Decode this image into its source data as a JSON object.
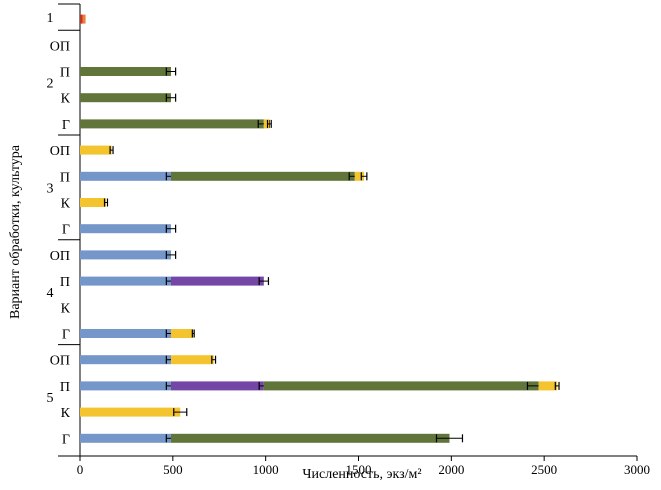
{
  "chart_data": {
    "type": "bar",
    "orientation": "horizontal-stacked",
    "title": "",
    "xlabel": "Численность, экз/м²",
    "ylabel": "Вариант обработки, культура",
    "xlim": [
      0,
      3000
    ],
    "xticks": [
      0,
      500,
      1000,
      1500,
      2000,
      2500,
      3000
    ],
    "grid": false,
    "legend": "none",
    "colors": {
      "blue": "#7496c9",
      "yellow": "#f4c42e",
      "green": "#61743a",
      "purple": "#7447a6",
      "red": "#c8321e",
      "orange": "#e8803a",
      "error_bar": "#000000"
    },
    "groups": [
      {
        "label": "1",
        "rows": [
          {
            "label": "",
            "segments": [
              {
                "color": "red",
                "value": 15,
                "err": 0
              },
              {
                "color": "orange",
                "value": 15,
                "err": 0
              }
            ]
          }
        ]
      },
      {
        "label": "2",
        "rows": [
          {
            "label": "ОП",
            "segments": []
          },
          {
            "label": "П",
            "segments": [
              {
                "color": "green",
                "value": 490,
                "err": 25
              }
            ]
          },
          {
            "label": "К",
            "segments": [
              {
                "color": "green",
                "value": 490,
                "err": 25
              }
            ]
          },
          {
            "label": "Г",
            "segments": [
              {
                "color": "green",
                "value": 990,
                "err": 30
              },
              {
                "color": "yellow",
                "value": 30,
                "err": 10
              }
            ]
          }
        ]
      },
      {
        "label": "3",
        "rows": [
          {
            "label": "ОП",
            "segments": [
              {
                "color": "yellow",
                "value": 170,
                "err": 8
              }
            ]
          },
          {
            "label": "П",
            "segments": [
              {
                "color": "blue",
                "value": 490,
                "err": 25
              },
              {
                "color": "green",
                "value": 990,
                "err": 30
              },
              {
                "color": "yellow",
                "value": 50,
                "err": 15
              }
            ]
          },
          {
            "label": "К",
            "segments": [
              {
                "color": "yellow",
                "value": 140,
                "err": 8
              }
            ]
          },
          {
            "label": "Г",
            "segments": [
              {
                "color": "blue",
                "value": 490,
                "err": 25
              }
            ]
          }
        ]
      },
      {
        "label": "4",
        "rows": [
          {
            "label": "ОП",
            "segments": [
              {
                "color": "blue",
                "value": 490,
                "err": 25
              }
            ]
          },
          {
            "label": "П",
            "segments": [
              {
                "color": "blue",
                "value": 490,
                "err": 25
              },
              {
                "color": "purple",
                "value": 500,
                "err": 25
              }
            ]
          },
          {
            "label": "К",
            "segments": []
          },
          {
            "label": "Г",
            "segments": [
              {
                "color": "blue",
                "value": 490,
                "err": 25
              },
              {
                "color": "yellow",
                "value": 120,
                "err": 5
              }
            ]
          }
        ]
      },
      {
        "label": "5",
        "rows": [
          {
            "label": "ОП",
            "segments": [
              {
                "color": "blue",
                "value": 490,
                "err": 25
              },
              {
                "color": "yellow",
                "value": 230,
                "err": 10
              }
            ]
          },
          {
            "label": "П",
            "segments": [
              {
                "color": "blue",
                "value": 490,
                "err": 25
              },
              {
                "color": "purple",
                "value": 500,
                "err": 25
              },
              {
                "color": "green",
                "value": 1480,
                "err": 60
              },
              {
                "color": "yellow",
                "value": 100,
                "err": 10
              }
            ]
          },
          {
            "label": "К",
            "segments": [
              {
                "color": "yellow",
                "value": 540,
                "err": 35
              }
            ]
          },
          {
            "label": "Г",
            "segments": [
              {
                "color": "blue",
                "value": 490,
                "err": 25
              },
              {
                "color": "green",
                "value": 1500,
                "err": 70
              }
            ]
          }
        ]
      }
    ]
  }
}
